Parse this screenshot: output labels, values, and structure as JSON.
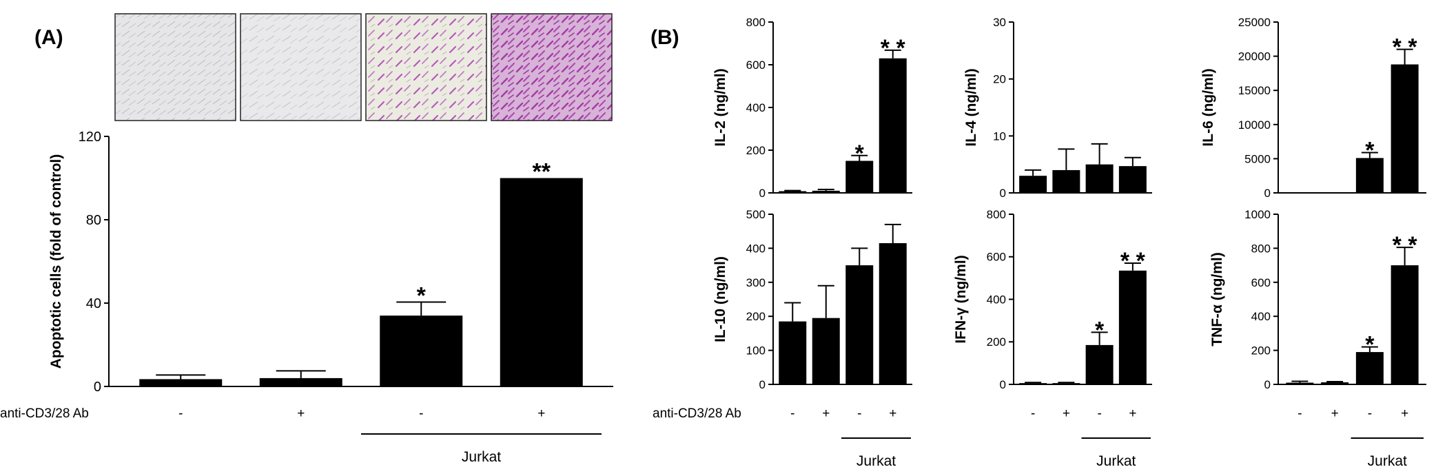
{
  "panel_a_label": "(A)",
  "panel_b_label": "(B)",
  "treatment_label": "anti-CD3/28 Ab",
  "condition_signs": [
    "-",
    "+",
    "-",
    "+"
  ],
  "group_label": "Jurkat",
  "colors": {
    "bar": "#000000",
    "stain_light": "#e8e6ea",
    "stain_heavy": "#c78ac8"
  },
  "chart_data": [
    {
      "id": "A",
      "type": "bar",
      "categories": [
        "-",
        "+",
        "-",
        "+"
      ],
      "values": [
        3.5,
        4,
        34,
        100
      ],
      "errors": [
        2,
        3.5,
        6.5,
        0
      ],
      "significance": [
        "",
        "",
        "*",
        "**"
      ],
      "ylabel": "Apoptotic cells (fold of control)",
      "ylim": [
        0,
        120
      ],
      "yticks": [
        0,
        40,
        80,
        120
      ]
    },
    {
      "id": "IL-2",
      "type": "bar",
      "categories": [
        "-",
        "+",
        "-",
        "+"
      ],
      "values": [
        8,
        10,
        150,
        630
      ],
      "errors": [
        3,
        6,
        25,
        38
      ],
      "significance": [
        "",
        "",
        "*",
        "* *"
      ],
      "ylabel": "IL-2 (ng/ml)",
      "ylim": [
        0,
        800
      ],
      "yticks": [
        0,
        200,
        400,
        600,
        800
      ]
    },
    {
      "id": "IL-4",
      "type": "bar",
      "categories": [
        "-",
        "+",
        "-",
        "+"
      ],
      "values": [
        3,
        4,
        5,
        4.7
      ],
      "errors": [
        1,
        3.7,
        3.6,
        1.5
      ],
      "significance": [
        "",
        "",
        "",
        ""
      ],
      "ylabel": "IL-4 (ng/ml)",
      "ylim": [
        0,
        30
      ],
      "yticks": [
        0,
        10,
        20,
        30
      ]
    },
    {
      "id": "IL-6",
      "type": "bar",
      "categories": [
        "-",
        "+",
        "-",
        "+"
      ],
      "values": [
        0,
        0,
        5100,
        18800
      ],
      "errors": [
        0,
        0,
        800,
        2200
      ],
      "significance": [
        "",
        "",
        "*",
        "* *"
      ],
      "ylabel": "IL-6 (ng/ml)",
      "ylim": [
        0,
        25000
      ],
      "yticks": [
        0,
        5000,
        10000,
        15000,
        20000,
        25000
      ]
    },
    {
      "id": "IL-10",
      "type": "bar",
      "categories": [
        "-",
        "+",
        "-",
        "+"
      ],
      "values": [
        185,
        195,
        350,
        415
      ],
      "errors": [
        55,
        95,
        50,
        55
      ],
      "significance": [
        "",
        "",
        "",
        ""
      ],
      "ylabel": "IL-10 (ng/ml)",
      "ylim": [
        0,
        500
      ],
      "yticks": [
        0,
        100,
        200,
        300,
        400,
        500
      ]
    },
    {
      "id": "IFN-y",
      "type": "bar",
      "categories": [
        "-",
        "+",
        "-",
        "+"
      ],
      "values": [
        6,
        6,
        185,
        535
      ],
      "errors": [
        3,
        3,
        60,
        35
      ],
      "significance": [
        "",
        "",
        "*",
        "* *"
      ],
      "ylabel": "IFN-γ (ng/ml)",
      "ylim": [
        0,
        800
      ],
      "yticks": [
        0,
        200,
        400,
        600,
        800
      ]
    },
    {
      "id": "TNF-a",
      "type": "bar",
      "categories": [
        "-",
        "+",
        "-",
        "+"
      ],
      "values": [
        10,
        12,
        190,
        700
      ],
      "errors": [
        8,
        4,
        30,
        105
      ],
      "significance": [
        "",
        "",
        "*",
        "* *"
      ],
      "ylabel": "TNF-α (ng/ml)",
      "ylim": [
        0,
        1000
      ],
      "yticks": [
        0,
        200,
        400,
        600,
        800,
        1000
      ]
    }
  ]
}
